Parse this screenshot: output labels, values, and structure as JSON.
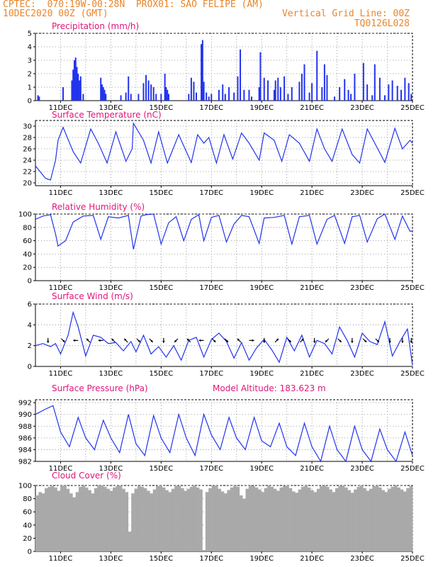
{
  "header": {
    "line1": "CPTEC:  070:19W-00:28N  PROX01: SAO FELIPE (AM)",
    "line2_left": "10DEC2020 00Z (GMT)",
    "line2_right": "Vertical Grid Line: 00Z",
    "line3_right": "TQ0126L028"
  },
  "colors": {
    "title": "#e0157a",
    "header": "#e8862a",
    "series": "#2233ee",
    "cloud": "#a9a9a9",
    "arrow": "#000000"
  },
  "x_axis": {
    "range_days": [
      10,
      25
    ],
    "tick_days": [
      11,
      13,
      15,
      17,
      19,
      21,
      23,
      25
    ],
    "tick_labels": [
      "11DEC",
      "13DEC",
      "15DEC",
      "17DEC",
      "19DEC",
      "21DEC",
      "23DEC",
      "25DEC"
    ]
  },
  "chart_data": [
    {
      "type": "bar",
      "title": "Precipitation (mm/h)",
      "ylim": [
        0,
        5
      ],
      "yticks": [
        0,
        1,
        2,
        3,
        4,
        5
      ],
      "y_tick_labels": [
        "0",
        "1",
        "2",
        "3",
        "4",
        "5"
      ],
      "grid": true,
      "x_day": [
        10.1,
        10.15,
        11.1,
        11.45,
        11.5,
        11.55,
        11.6,
        11.65,
        11.7,
        11.75,
        11.8,
        11.9,
        12.6,
        12.65,
        12.7,
        12.75,
        12.8,
        13.4,
        13.6,
        13.7,
        13.8,
        14.1,
        14.3,
        14.4,
        14.5,
        14.6,
        14.7,
        14.8,
        15.0,
        15.15,
        15.2,
        15.25,
        15.3,
        16.1,
        16.2,
        16.3,
        16.4,
        16.6,
        16.65,
        16.7,
        16.8,
        16.9,
        17.0,
        17.3,
        17.45,
        17.55,
        17.7,
        17.9,
        18.05,
        18.15,
        18.3,
        18.5,
        18.6,
        18.9,
        18.95,
        19.1,
        19.25,
        19.5,
        19.55,
        19.65,
        19.75,
        19.9,
        20.05,
        20.2,
        20.5,
        20.6,
        20.7,
        20.9,
        21.0,
        21.2,
        21.4,
        21.5,
        21.6,
        21.9,
        22.1,
        22.3,
        22.45,
        22.55,
        22.7,
        23.05,
        23.2,
        23.4,
        23.5,
        23.7,
        23.9,
        24.05,
        24.2,
        24.4,
        24.55,
        24.7,
        24.85,
        24.95
      ],
      "values": [
        0.4,
        0.3,
        1.0,
        1.5,
        2.3,
        3.0,
        3.2,
        2.5,
        2.0,
        1.5,
        1.8,
        0.5,
        1.7,
        1.2,
        1.0,
        0.8,
        0.5,
        0.4,
        0.6,
        1.8,
        0.5,
        0.5,
        1.3,
        1.9,
        1.5,
        1.2,
        1.0,
        0.5,
        0.5,
        2.0,
        1.0,
        0.8,
        0.5,
        0.5,
        1.7,
        1.4,
        0.6,
        4.2,
        4.5,
        1.4,
        0.6,
        0.3,
        0.5,
        0.8,
        1.2,
        0.5,
        1.0,
        0.6,
        1.8,
        3.8,
        0.8,
        0.8,
        0.3,
        1.0,
        3.6,
        1.7,
        1.5,
        0.8,
        1.5,
        1.7,
        1.0,
        1.8,
        0.5,
        1.0,
        1.4,
        2.0,
        2.7,
        0.6,
        1.3,
        3.7,
        1.0,
        2.7,
        1.9,
        0.3,
        1.0,
        1.6,
        0.8,
        0.5,
        2.0,
        2.8,
        1.2,
        0.4,
        2.7,
        1.7,
        0.4,
        1.2,
        1.5,
        1.1,
        0.8,
        1.7,
        1.3,
        0.5
      ]
    },
    {
      "type": "line",
      "title": "Surface Temperature (nC)",
      "ylim": [
        19.5,
        31
      ],
      "yticks": [
        20,
        22,
        24,
        26,
        28,
        30
      ],
      "y_tick_labels": [
        "20",
        "22",
        "24",
        "26",
        "28",
        "30"
      ],
      "grid": true,
      "x_day": [
        10.0,
        10.4,
        10.6,
        10.8,
        10.9,
        11.1,
        11.5,
        11.8,
        12.2,
        12.5,
        12.85,
        13.2,
        13.6,
        13.85,
        13.9,
        14.3,
        14.6,
        14.9,
        15.25,
        15.7,
        15.85,
        16.2,
        16.45,
        16.7,
        16.9,
        17.2,
        17.5,
        17.85,
        18.2,
        18.5,
        18.9,
        19.1,
        19.5,
        19.8,
        20.1,
        20.5,
        20.9,
        21.2,
        21.5,
        21.8,
        22.2,
        22.6,
        22.9,
        23.2,
        23.5,
        23.9,
        24.3,
        24.6,
        24.9,
        25.0
      ],
      "values": [
        23.0,
        20.8,
        20.5,
        24.0,
        27.5,
        29.8,
        25.5,
        23.5,
        29.5,
        27.0,
        23.5,
        29.0,
        23.8,
        26.0,
        30.5,
        27.5,
        23.5,
        29.0,
        23.5,
        28.5,
        27.0,
        23.6,
        28.5,
        27.0,
        28.0,
        23.5,
        28.5,
        24.2,
        28.8,
        27.0,
        24.0,
        28.8,
        27.5,
        23.8,
        28.5,
        27.0,
        23.8,
        29.5,
        26.0,
        23.8,
        29.5,
        25.0,
        23.5,
        29.5,
        27.0,
        23.6,
        29.6,
        26.0,
        27.5,
        27.0
      ]
    },
    {
      "type": "line",
      "title": "Relative Humidity (%)",
      "ylim": [
        0,
        100
      ],
      "yticks": [
        0,
        20,
        40,
        60,
        80,
        100
      ],
      "y_tick_labels": [
        "0",
        "20",
        "40",
        "60",
        "80",
        "100"
      ],
      "grid": true,
      "x_day": [
        10.0,
        10.3,
        10.6,
        10.8,
        10.9,
        11.2,
        11.5,
        11.9,
        12.3,
        12.6,
        12.9,
        13.3,
        13.7,
        13.9,
        14.2,
        14.4,
        14.7,
        15.0,
        15.3,
        15.6,
        15.9,
        16.2,
        16.5,
        16.7,
        17.0,
        17.3,
        17.6,
        17.9,
        18.2,
        18.5,
        18.9,
        19.1,
        19.5,
        19.9,
        20.2,
        20.5,
        20.9,
        21.2,
        21.6,
        21.9,
        22.3,
        22.6,
        22.9,
        23.2,
        23.6,
        23.9,
        24.3,
        24.6,
        24.9,
        25.0
      ],
      "values": [
        92,
        97,
        99,
        70,
        52,
        60,
        88,
        97,
        98,
        62,
        96,
        94,
        98,
        47,
        97,
        99,
        100,
        55,
        87,
        96,
        60,
        92,
        99,
        60,
        95,
        98,
        58,
        85,
        98,
        96,
        56,
        94,
        95,
        98,
        55,
        96,
        98,
        55,
        92,
        98,
        56,
        96,
        98,
        58,
        93,
        100,
        62,
        97,
        74,
        75
      ]
    },
    {
      "type": "line",
      "title": "Surface Wind (m/s)",
      "ylim": [
        0,
        6
      ],
      "yticks": [
        0,
        2,
        4,
        6
      ],
      "y_tick_labels": [
        "0",
        "2",
        "4",
        "6"
      ],
      "grid": true,
      "x_day": [
        10.0,
        10.3,
        10.6,
        10.8,
        11.0,
        11.3,
        11.5,
        11.7,
        12.0,
        12.3,
        12.6,
        12.9,
        13.2,
        13.5,
        13.8,
        14.0,
        14.3,
        14.6,
        14.9,
        15.2,
        15.5,
        15.8,
        16.1,
        16.4,
        16.7,
        17.0,
        17.3,
        17.6,
        17.9,
        18.2,
        18.5,
        18.8,
        19.1,
        19.4,
        19.7,
        20.0,
        20.3,
        20.6,
        20.9,
        21.2,
        21.5,
        21.8,
        22.1,
        22.4,
        22.7,
        23.0,
        23.3,
        23.6,
        23.9,
        24.2,
        24.5,
        24.8,
        25.0
      ],
      "values": [
        2.0,
        2.2,
        1.9,
        2.2,
        1.2,
        3.0,
        5.2,
        3.8,
        1.0,
        3.0,
        2.8,
        2.2,
        2.3,
        1.5,
        2.4,
        1.4,
        3.0,
        1.2,
        1.9,
        0.9,
        2.0,
        0.6,
        2.5,
        2.8,
        0.9,
        2.6,
        3.2,
        2.4,
        0.8,
        2.3,
        0.6,
        1.8,
        2.6,
        1.6,
        0.4,
        2.8,
        1.5,
        3.0,
        0.9,
        2.5,
        2.2,
        1.2,
        3.8,
        2.5,
        0.9,
        3.2,
        2.4,
        2.1,
        4.3,
        1.0,
        2.4,
        3.6,
        0.1
      ],
      "arrows": [
        {
          "day": 10.5,
          "dir": "s"
        },
        {
          "day": 11.1,
          "dir": "se"
        },
        {
          "day": 11.6,
          "dir": "w"
        },
        {
          "day": 12.1,
          "dir": "nw"
        },
        {
          "day": 12.6,
          "dir": "w"
        },
        {
          "day": 13.1,
          "dir": "nw"
        },
        {
          "day": 13.6,
          "dir": "nw"
        },
        {
          "day": 14.1,
          "dir": "se"
        },
        {
          "day": 14.6,
          "dir": "se"
        },
        {
          "day": 15.1,
          "dir": "s"
        },
        {
          "day": 15.6,
          "dir": "sw"
        },
        {
          "day": 16.1,
          "dir": "nw"
        },
        {
          "day": 16.6,
          "dir": "w"
        },
        {
          "day": 17.1,
          "dir": "se"
        },
        {
          "day": 17.6,
          "dir": "se"
        },
        {
          "day": 18.1,
          "dir": "nw"
        },
        {
          "day": 18.6,
          "dir": "e"
        },
        {
          "day": 19.1,
          "dir": "s"
        },
        {
          "day": 19.6,
          "dir": "ne"
        },
        {
          "day": 20.1,
          "dir": "se"
        },
        {
          "day": 20.6,
          "dir": "ne"
        },
        {
          "day": 21.1,
          "dir": "s"
        },
        {
          "day": 21.6,
          "dir": "sw"
        },
        {
          "day": 22.1,
          "dir": "se"
        },
        {
          "day": 22.6,
          "dir": "s"
        },
        {
          "day": 23.1,
          "dir": "se"
        },
        {
          "day": 23.6,
          "dir": "se"
        },
        {
          "day": 24.1,
          "dir": "s"
        },
        {
          "day": 24.6,
          "dir": "s"
        },
        {
          "day": 24.95,
          "dir": "s"
        }
      ]
    },
    {
      "type": "line",
      "title": "Surface Pressure (hPa)",
      "annotation": "Model Altitude: 183.623 m",
      "ylim": [
        982,
        992.5
      ],
      "yticks": [
        982,
        984,
        986,
        988,
        990,
        992
      ],
      "y_tick_labels": [
        "982",
        "984",
        "986",
        "988",
        "990",
        "992"
      ],
      "grid": true,
      "x_day": [
        10.0,
        10.35,
        10.7,
        11.0,
        11.35,
        11.7,
        12.0,
        12.35,
        12.7,
        13.0,
        13.35,
        13.7,
        14.0,
        14.35,
        14.7,
        15.0,
        15.35,
        15.7,
        16.0,
        16.35,
        16.7,
        17.0,
        17.35,
        17.7,
        18.0,
        18.35,
        18.7,
        19.0,
        19.35,
        19.7,
        20.0,
        20.35,
        20.7,
        21.0,
        21.35,
        21.7,
        22.0,
        22.35,
        22.7,
        23.0,
        23.35,
        23.7,
        24.0,
        24.35,
        24.7,
        25.0
      ],
      "values": [
        990.0,
        990.8,
        991.5,
        987.0,
        984.5,
        989.5,
        986.0,
        984.0,
        989.0,
        986.0,
        983.5,
        990.0,
        985.0,
        983.0,
        989.8,
        986.0,
        983.5,
        990.0,
        986.0,
        983.0,
        990.0,
        986.5,
        984.0,
        989.5,
        986.0,
        984.0,
        989.5,
        985.5,
        984.5,
        988.5,
        984.5,
        983.0,
        988.5,
        984.5,
        982.0,
        988.0,
        984.0,
        982.0,
        988.0,
        984.0,
        982.0,
        987.5,
        984.0,
        982.0,
        987.0,
        983.0
      ]
    },
    {
      "type": "bar",
      "title": "Cloud Cover (%)",
      "ylim": [
        0,
        100
      ],
      "yticks": [
        0,
        20,
        40,
        60,
        80,
        100
      ],
      "y_tick_labels": [
        "0",
        "20",
        "40",
        "60",
        "80",
        "100"
      ],
      "grid": true,
      "values": [
        85,
        90,
        88,
        96,
        98,
        99,
        97,
        92,
        100,
        100,
        95,
        88,
        82,
        90,
        98,
        100,
        97,
        93,
        88,
        96,
        100,
        100,
        98,
        95,
        92,
        97,
        99,
        100,
        95,
        90,
        30,
        88,
        95,
        100,
        98,
        96,
        92,
        88,
        94,
        99,
        100,
        97,
        93,
        90,
        95,
        100,
        99,
        96,
        92,
        95,
        98,
        100,
        97,
        94,
        2,
        90,
        96,
        99,
        100,
        95,
        91,
        88,
        93,
        97,
        100,
        98,
        85,
        80,
        95,
        100,
        99,
        97,
        94,
        90,
        96,
        100,
        98,
        95,
        92,
        97,
        99,
        100,
        96,
        91,
        89,
        94,
        98,
        100,
        97,
        93,
        90,
        95,
        99,
        100,
        98,
        94,
        90,
        96,
        99,
        100,
        97,
        93,
        89,
        94,
        98,
        100,
        96,
        92,
        95,
        99,
        100,
        97,
        93,
        90,
        95,
        98,
        100,
        97,
        94,
        91,
        96,
        99
      ]
    }
  ]
}
